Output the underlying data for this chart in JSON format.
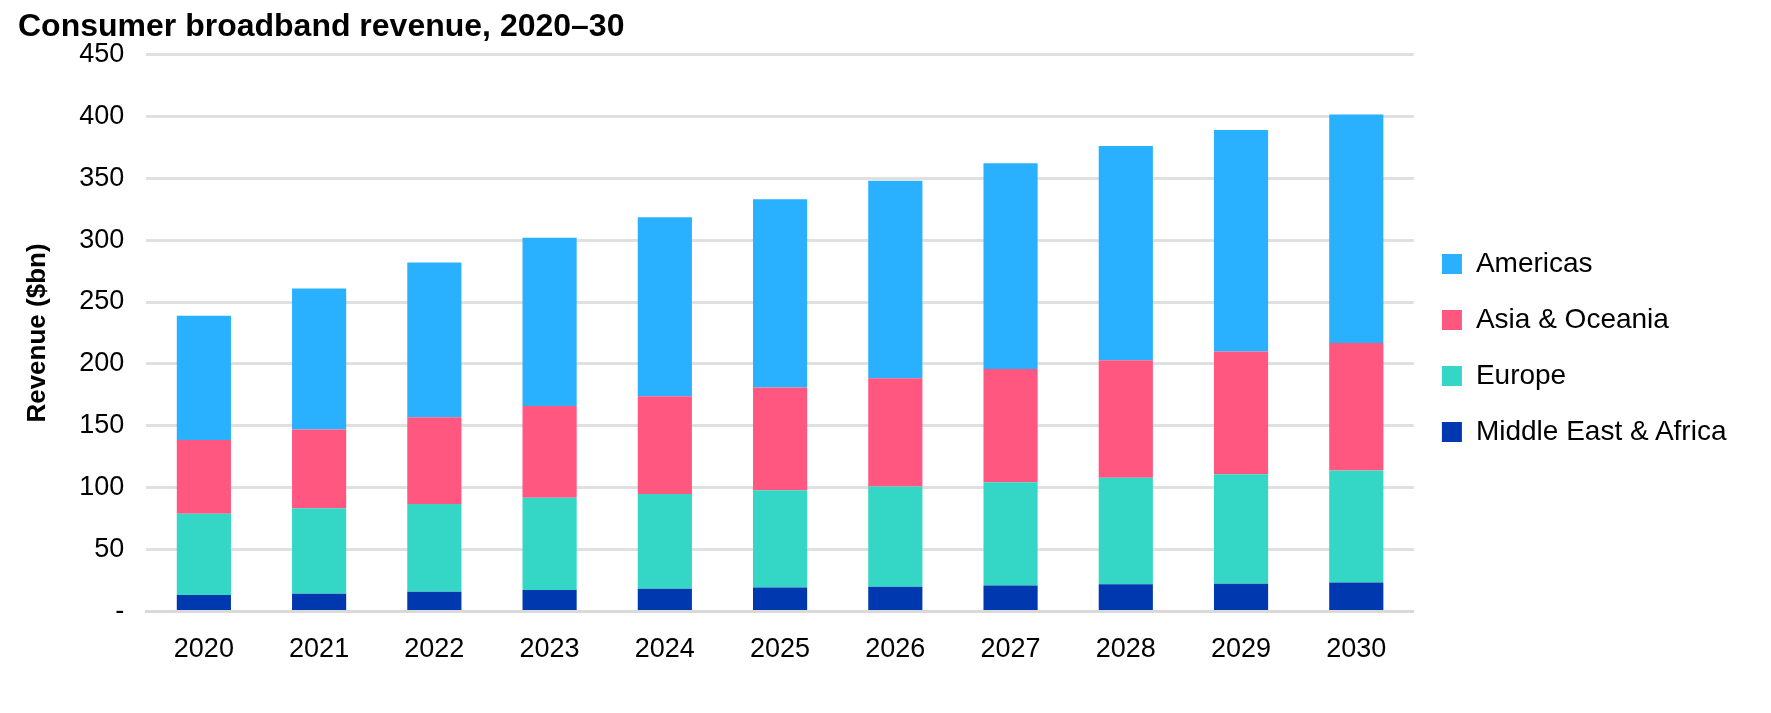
{
  "chart_data": {
    "type": "bar",
    "title": "Consumer broadband revenue, 2020–30",
    "ylabel": "Revenue ($bn)",
    "categories": [
      "2020",
      "2021",
      "2022",
      "2023",
      "2024",
      "2025",
      "2026",
      "2027",
      "2028",
      "2029",
      "2030"
    ],
    "stacked": true,
    "series": [
      {
        "name": "Middle East & Africa",
        "color": "#0038b0",
        "values": [
          13.5,
          14.5,
          16,
          17.5,
          18.5,
          19.5,
          20,
          21,
          22,
          22.5,
          23.5
        ]
      },
      {
        "name": "Europe",
        "color": "#34d6c6",
        "values": [
          65.5,
          69,
          71,
          74.5,
          76.5,
          78.5,
          81,
          83.5,
          86,
          88.5,
          90.5
        ]
      },
      {
        "name": "Asia & Oceania",
        "color": "#ff5780",
        "values": [
          59.5,
          63.5,
          70,
          74,
          79,
          83,
          87.5,
          91.5,
          95,
          99,
          103
        ]
      },
      {
        "name": "Americas",
        "color": "#29b1ff",
        "values": [
          100.5,
          114,
          125,
          136,
          144.5,
          152,
          159.5,
          166,
          173,
          179,
          184.5
        ]
      }
    ],
    "ylim": [
      0,
      450
    ],
    "yticks": [
      {
        "value": 0,
        "label": "-"
      },
      50,
      100,
      150,
      200,
      250,
      300,
      350,
      400,
      450
    ],
    "grid": "y",
    "legend": "right"
  }
}
